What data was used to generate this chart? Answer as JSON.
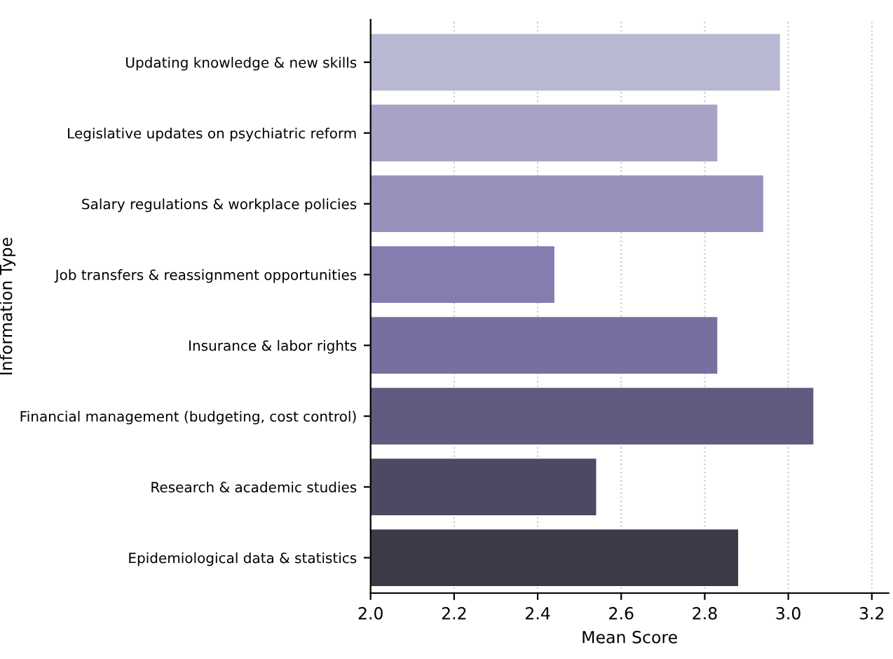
{
  "chart_data": {
    "type": "bar",
    "orientation": "horizontal",
    "xlabel": "Mean Score",
    "ylabel": "Information Type",
    "categories": [
      "Updating knowledge & new skills",
      "Legislative updates on psychiatric reform",
      "Salary regulations & workplace policies",
      "Job transfers & reassignment opportunities",
      "Insurance & labor rights",
      "Financial management (budgeting, cost control)",
      "Research & academic studies",
      "Epidemiological data & statistics"
    ],
    "values": [
      2.98,
      2.83,
      2.94,
      2.44,
      2.83,
      3.06,
      2.54,
      2.88
    ],
    "colors": [
      "#b8b8d2",
      "#a7a2c6",
      "#9990bb",
      "#857cb0",
      "#786e9f",
      "#625a80",
      "#4f4863",
      "#3d3a48"
    ],
    "xlim": [
      2.0,
      3.24
    ],
    "xticks": [
      {
        "value": 2.0,
        "label": "2.0"
      },
      2.2,
      2.4,
      2.6,
      2.8,
      {
        "value": 3.0,
        "label": "3.0"
      },
      3.2
    ],
    "grid": "x"
  }
}
